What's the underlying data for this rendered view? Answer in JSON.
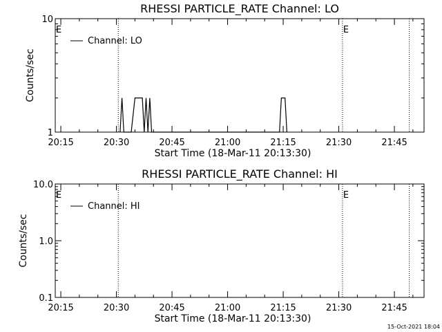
{
  "footer": {
    "timestamp": "15-Oct-2021 18:04"
  },
  "chart_data": [
    {
      "type": "line",
      "title": "RHESSI PARTICLE_RATE Channel: LO",
      "xlabel": "Start Time (18-Mar-11 20:13:30)",
      "ylabel": "Counts/sec",
      "yscale": "log",
      "ylim": [
        1,
        10
      ],
      "xlim": [
        "20:13:30",
        "21:53:00"
      ],
      "x_ticks": [
        "20:15",
        "20:30",
        "20:45",
        "21:00",
        "21:15",
        "21:30",
        "21:45"
      ],
      "y_ticks": [
        "1",
        "10"
      ],
      "legend": "top-left",
      "series": [
        {
          "name": "Channel: LO",
          "points": [
            [
              "20:31:00",
              1
            ],
            [
              "20:31:30",
              2
            ],
            [
              "20:32:00",
              1
            ],
            [
              "20:34:00",
              1
            ],
            [
              "20:35:00",
              2
            ],
            [
              "20:37:00",
              2
            ],
            [
              "20:37:30",
              1
            ],
            [
              "20:38:00",
              2
            ],
            [
              "20:38:30",
              1
            ],
            [
              "20:39:00",
              2
            ],
            [
              "20:39:30",
              1
            ],
            [
              "21:14:00",
              1
            ],
            [
              "21:14:30",
              2
            ],
            [
              "21:15:30",
              2
            ],
            [
              "21:16:00",
              1
            ]
          ]
        }
      ],
      "markers": [
        {
          "time": "20:30:30",
          "label": ""
        },
        {
          "time": "21:31:00",
          "label": "E"
        },
        {
          "time": "21:49:00",
          "label": ""
        }
      ],
      "edge_label": "E"
    },
    {
      "type": "line",
      "title": "RHESSI PARTICLE_RATE Channel: HI",
      "xlabel": "Start Time (18-Mar-11 20:13:30)",
      "ylabel": "Counts/sec",
      "yscale": "log",
      "ylim": [
        0.1,
        10
      ],
      "xlim": [
        "20:13:30",
        "21:53:00"
      ],
      "x_ticks": [
        "20:15",
        "20:30",
        "20:45",
        "21:00",
        "21:15",
        "21:30",
        "21:45"
      ],
      "y_ticks": [
        "0.1",
        "1.0",
        "10.0"
      ],
      "legend": "top-left",
      "series": [
        {
          "name": "Channel: HI",
          "points": []
        }
      ],
      "markers": [
        {
          "time": "20:30:30",
          "label": ""
        },
        {
          "time": "21:31:00",
          "label": "E"
        },
        {
          "time": "21:49:00",
          "label": ""
        }
      ],
      "edge_label": "E"
    }
  ]
}
